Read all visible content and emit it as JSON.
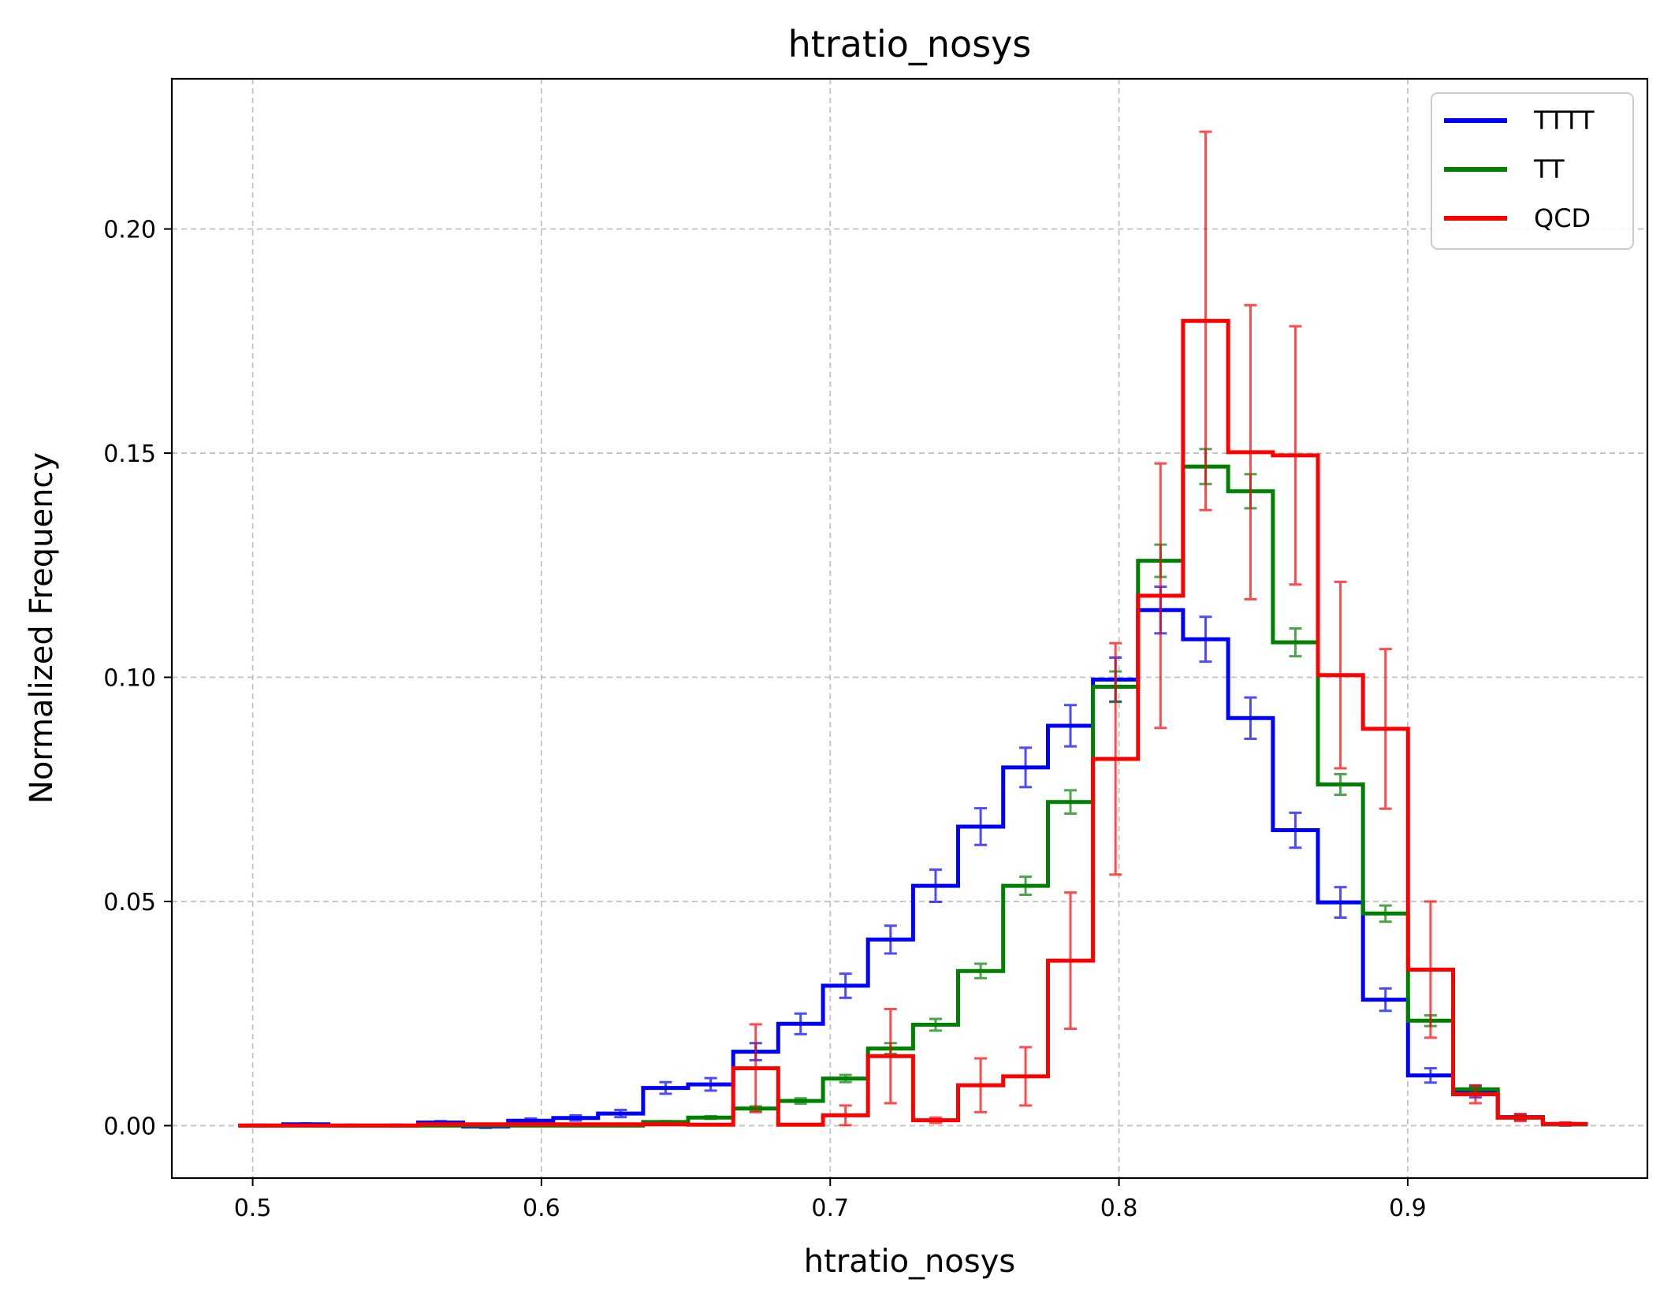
{
  "chart_data": {
    "type": "histogram",
    "title": "htratio_nosys",
    "xlabel": "htratio_nosys",
    "ylabel": "Normalized Frequency",
    "xlim": [
      0.472,
      0.983
    ],
    "ylim": [
      -0.0117,
      0.2335
    ],
    "xticks": [
      0.5,
      0.6,
      0.7,
      0.8,
      0.9
    ],
    "xtick_labels": [
      "0.5",
      "0.6",
      "0.7",
      "0.8",
      "0.9"
    ],
    "yticks": [
      0.0,
      0.05,
      0.1,
      0.15,
      0.2
    ],
    "ytick_labels": [
      "0.00",
      "0.05",
      "0.10",
      "0.15",
      "0.20"
    ],
    "grid": true,
    "legend_position": "top-right",
    "series": [
      {
        "name": "TTTT",
        "color": "#0000ff",
        "bin_edges": [
          0.495,
          0.5106,
          0.5262,
          0.5417,
          0.5573,
          0.5729,
          0.5885,
          0.6041,
          0.6196,
          0.6352,
          0.6508,
          0.6664,
          0.682,
          0.6975,
          0.7131,
          0.7287,
          0.7443,
          0.7599,
          0.7754,
          0.791,
          0.8066,
          0.8222,
          0.8378,
          0.8533,
          0.8689,
          0.8845,
          0.9001,
          0.9157,
          0.9312,
          0.9468,
          0.9624
        ],
        "values": [
          0.0,
          0.0003,
          0.0,
          0.0,
          0.0007,
          -0.0002,
          0.0011,
          0.0017,
          0.0027,
          0.0084,
          0.0092,
          0.0165,
          0.0227,
          0.0312,
          0.0415,
          0.0535,
          0.0667,
          0.0799,
          0.0892,
          0.0995,
          0.115,
          0.1085,
          0.0909,
          0.0659,
          0.0498,
          0.0281,
          0.0112,
          0.0075,
          0.0019,
          0.0003
        ],
        "errors": [
          0.0002,
          0.0002,
          0.0002,
          0.0002,
          0.0003,
          0.0003,
          0.0005,
          0.0006,
          0.0008,
          0.0013,
          0.0014,
          0.0019,
          0.0023,
          0.0027,
          0.0031,
          0.0036,
          0.0041,
          0.0044,
          0.0046,
          0.0049,
          0.0052,
          0.005,
          0.0046,
          0.0039,
          0.0034,
          0.0025,
          0.0016,
          0.0012,
          0.0006,
          0.0003
        ]
      },
      {
        "name": "TT",
        "color": "#008000",
        "bin_edges": [
          0.495,
          0.5106,
          0.5262,
          0.5417,
          0.5573,
          0.5729,
          0.5885,
          0.6041,
          0.6196,
          0.6352,
          0.6508,
          0.6664,
          0.682,
          0.6975,
          0.7131,
          0.7287,
          0.7443,
          0.7599,
          0.7754,
          0.791,
          0.8066,
          0.8222,
          0.8378,
          0.8533,
          0.8689,
          0.8845,
          0.9001,
          0.9157,
          0.9312,
          0.9468,
          0.9624
        ],
        "values": [
          0.0,
          0.0,
          0.0,
          0.0,
          0.0,
          0.0,
          0.0,
          0.0,
          0.0,
          0.0008,
          0.0018,
          0.0038,
          0.0055,
          0.0105,
          0.0172,
          0.0225,
          0.0345,
          0.0535,
          0.0722,
          0.0979,
          0.126,
          0.147,
          0.1415,
          0.1078,
          0.0761,
          0.0473,
          0.0234,
          0.0081,
          0.0018,
          0.0003
        ],
        "errors": [
          0.0,
          0.0,
          0.0,
          0.0,
          0.0,
          0.0,
          0.0,
          0.0,
          0.0,
          0.0002,
          0.0003,
          0.0005,
          0.0006,
          0.0008,
          0.0012,
          0.0013,
          0.0016,
          0.002,
          0.0026,
          0.0034,
          0.0036,
          0.0039,
          0.0038,
          0.0031,
          0.0023,
          0.0018,
          0.0012,
          0.0008,
          0.0004,
          0.0002
        ]
      },
      {
        "name": "QCD",
        "color": "#ff0000",
        "bin_edges": [
          0.495,
          0.5106,
          0.5262,
          0.5417,
          0.5573,
          0.5729,
          0.5885,
          0.6041,
          0.6196,
          0.6352,
          0.6508,
          0.6664,
          0.682,
          0.6975,
          0.7131,
          0.7287,
          0.7443,
          0.7599,
          0.7754,
          0.791,
          0.8066,
          0.8222,
          0.8378,
          0.8533,
          0.8689,
          0.8845,
          0.9001,
          0.9157,
          0.9312,
          0.9468,
          0.9624
        ],
        "values": [
          0.0,
          0.0,
          0.0,
          0.0,
          0.0003,
          0.0003,
          0.0003,
          0.0003,
          0.0003,
          0.0003,
          0.0002,
          0.0128,
          0.0002,
          0.0023,
          0.0155,
          0.0012,
          0.009,
          0.011,
          0.0368,
          0.0818,
          0.1182,
          0.1795,
          0.1502,
          0.1495,
          0.1005,
          0.0885,
          0.0348,
          0.007,
          0.0018,
          0.0004
        ],
        "errors": [
          0.0,
          0.0,
          0.0,
          0.0,
          0.0001,
          0.0001,
          0.0001,
          0.0001,
          0.0001,
          0.0001,
          0.0001,
          0.0098,
          0.0001,
          0.0022,
          0.0105,
          0.0006,
          0.006,
          0.0065,
          0.0152,
          0.0258,
          0.0295,
          0.0422,
          0.0328,
          0.0288,
          0.0208,
          0.0178,
          0.0152,
          0.002,
          0.0008,
          0.0003
        ]
      }
    ]
  }
}
